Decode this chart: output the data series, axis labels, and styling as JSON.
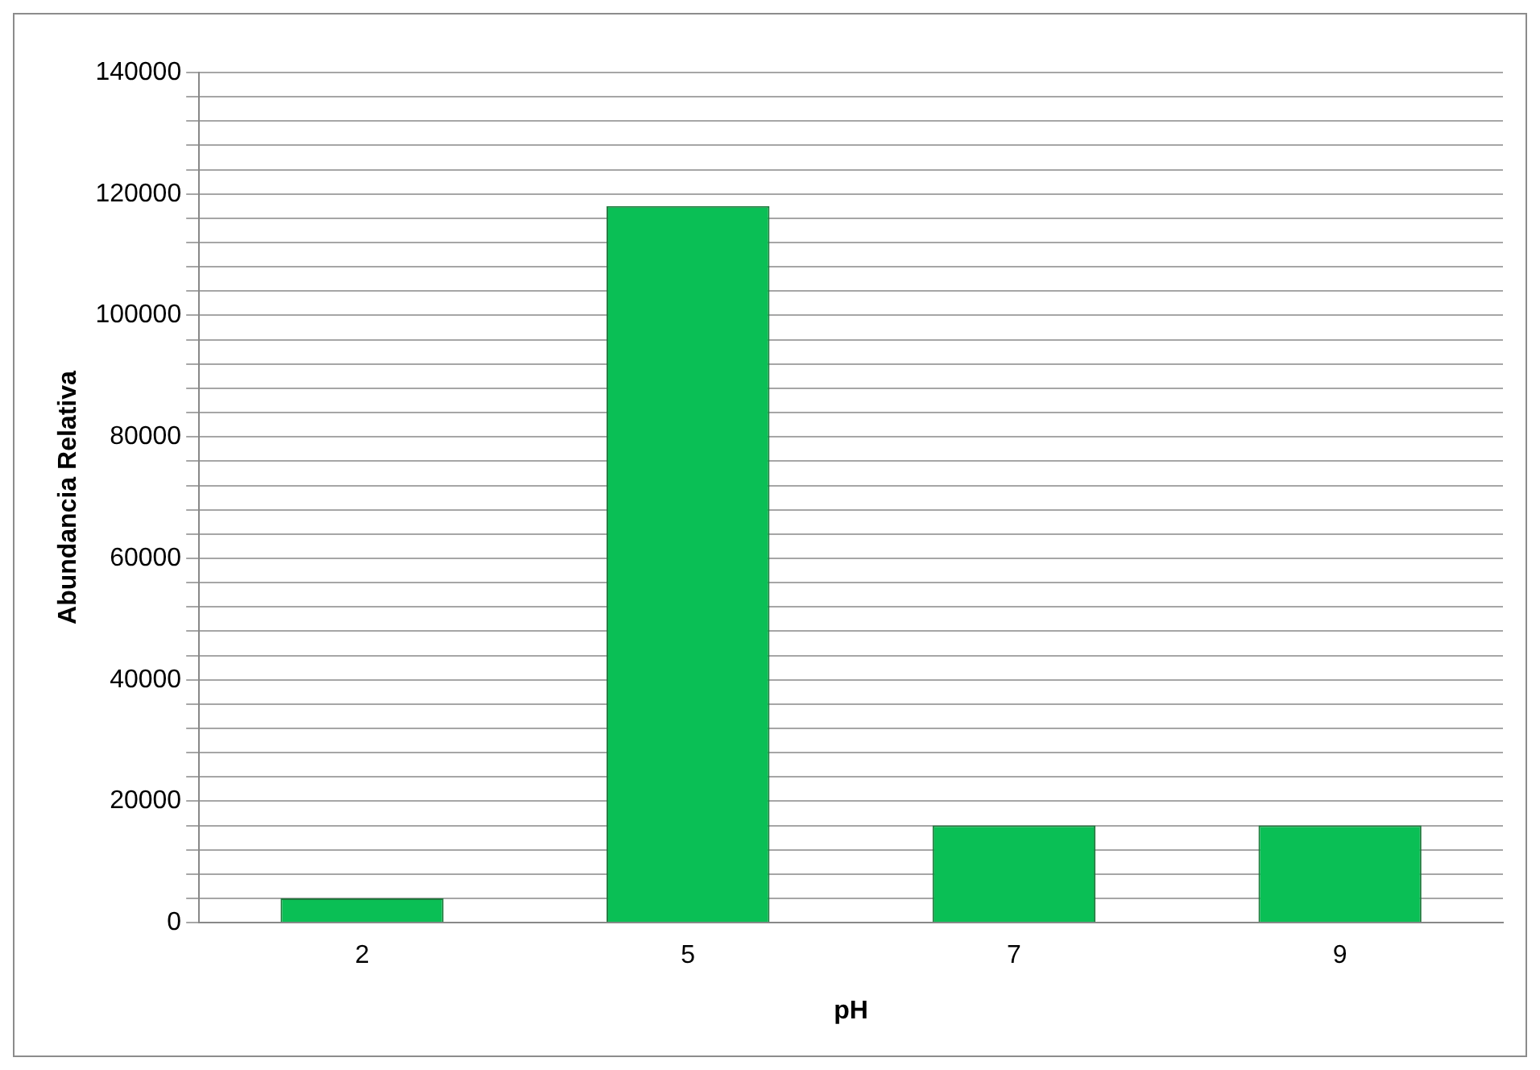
{
  "chart_data": {
    "type": "bar",
    "xlabel": "pH",
    "ylabel": "Abundancia Relativa",
    "categories": [
      "2",
      "5",
      "7",
      "9"
    ],
    "values": [
      4000,
      118000,
      16000,
      16000
    ],
    "color": "#0abf55",
    "ylim": [
      0,
      140000
    ],
    "yticks": [
      0,
      {
        "value": 4000,
        "label": null
      },
      {
        "value": 8000,
        "label": null
      },
      {
        "value": 12000,
        "label": null
      },
      {
        "value": 16000,
        "label": null
      },
      20000,
      {
        "value": 24000,
        "label": null
      },
      {
        "value": 28000,
        "label": null
      },
      {
        "value": 32000,
        "label": null
      },
      {
        "value": 36000,
        "label": null
      },
      40000,
      {
        "value": 44000,
        "label": null
      },
      {
        "value": 48000,
        "label": null
      },
      {
        "value": 52000,
        "label": null
      },
      {
        "value": 56000,
        "label": null
      },
      60000,
      {
        "value": 64000,
        "label": null
      },
      {
        "value": 68000,
        "label": null
      },
      {
        "value": 72000,
        "label": null
      },
      {
        "value": 76000,
        "label": null
      },
      80000,
      {
        "value": 84000,
        "label": null
      },
      {
        "value": 88000,
        "label": null
      },
      {
        "value": 92000,
        "label": null
      },
      {
        "value": 96000,
        "label": null
      },
      100000,
      {
        "value": 104000,
        "label": null
      },
      {
        "value": 108000,
        "label": null
      },
      {
        "value": 112000,
        "label": null
      },
      {
        "value": 116000,
        "label": null
      },
      120000,
      {
        "value": 124000,
        "label": null
      },
      {
        "value": 128000,
        "label": null
      },
      {
        "value": 132000,
        "label": null
      },
      {
        "value": 136000,
        "label": null
      },
      140000
    ],
    "grid": "y",
    "legend": false
  }
}
